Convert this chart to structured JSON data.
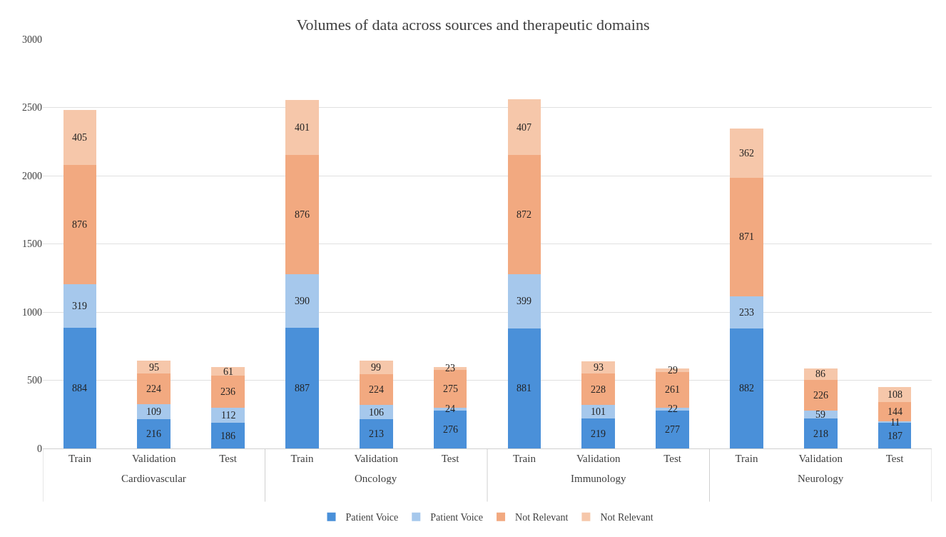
{
  "chart_data": {
    "type": "bar",
    "title": "Volumes of data across sources and therapeutic domains",
    "categories": [
      "Train",
      "Validation",
      "Test",
      "Train",
      "Validation",
      "Test",
      "Train",
      "Validation",
      "Test",
      "Train",
      "Validation",
      "Test"
    ],
    "series": [
      {
        "name": "Patient Voice",
        "color": "#4a90d9",
        "values": [
          884,
          216,
          186,
          887,
          213,
          276,
          881,
          219,
          277,
          882,
          218,
          187
        ]
      },
      {
        "name": "Patient Voice",
        "color": "#a6c8ec",
        "values": [
          319,
          109,
          112,
          390,
          106,
          24,
          399,
          101,
          22,
          233,
          59,
          11
        ]
      },
      {
        "name": "Not Relevant",
        "color": "#f2a980",
        "values": [
          876,
          224,
          236,
          876,
          224,
          275,
          872,
          228,
          261,
          871,
          226,
          144
        ]
      },
      {
        "name": "Not Relevant",
        "color": "#f6c7aa",
        "values": [
          405,
          95,
          61,
          401,
          99,
          23,
          407,
          93,
          29,
          362,
          86,
          108
        ]
      }
    ],
    "annotations": [
      "Cardiovascular",
      "Oncology",
      "Immunology",
      "Neurology"
    ],
    "stacked": true,
    "data_labels": true,
    "ylim": [
      0,
      3000
    ],
    "yticks": [
      0,
      500,
      1000,
      1500,
      2000,
      2500,
      3000
    ],
    "grid": "y",
    "legend": "bottom"
  }
}
